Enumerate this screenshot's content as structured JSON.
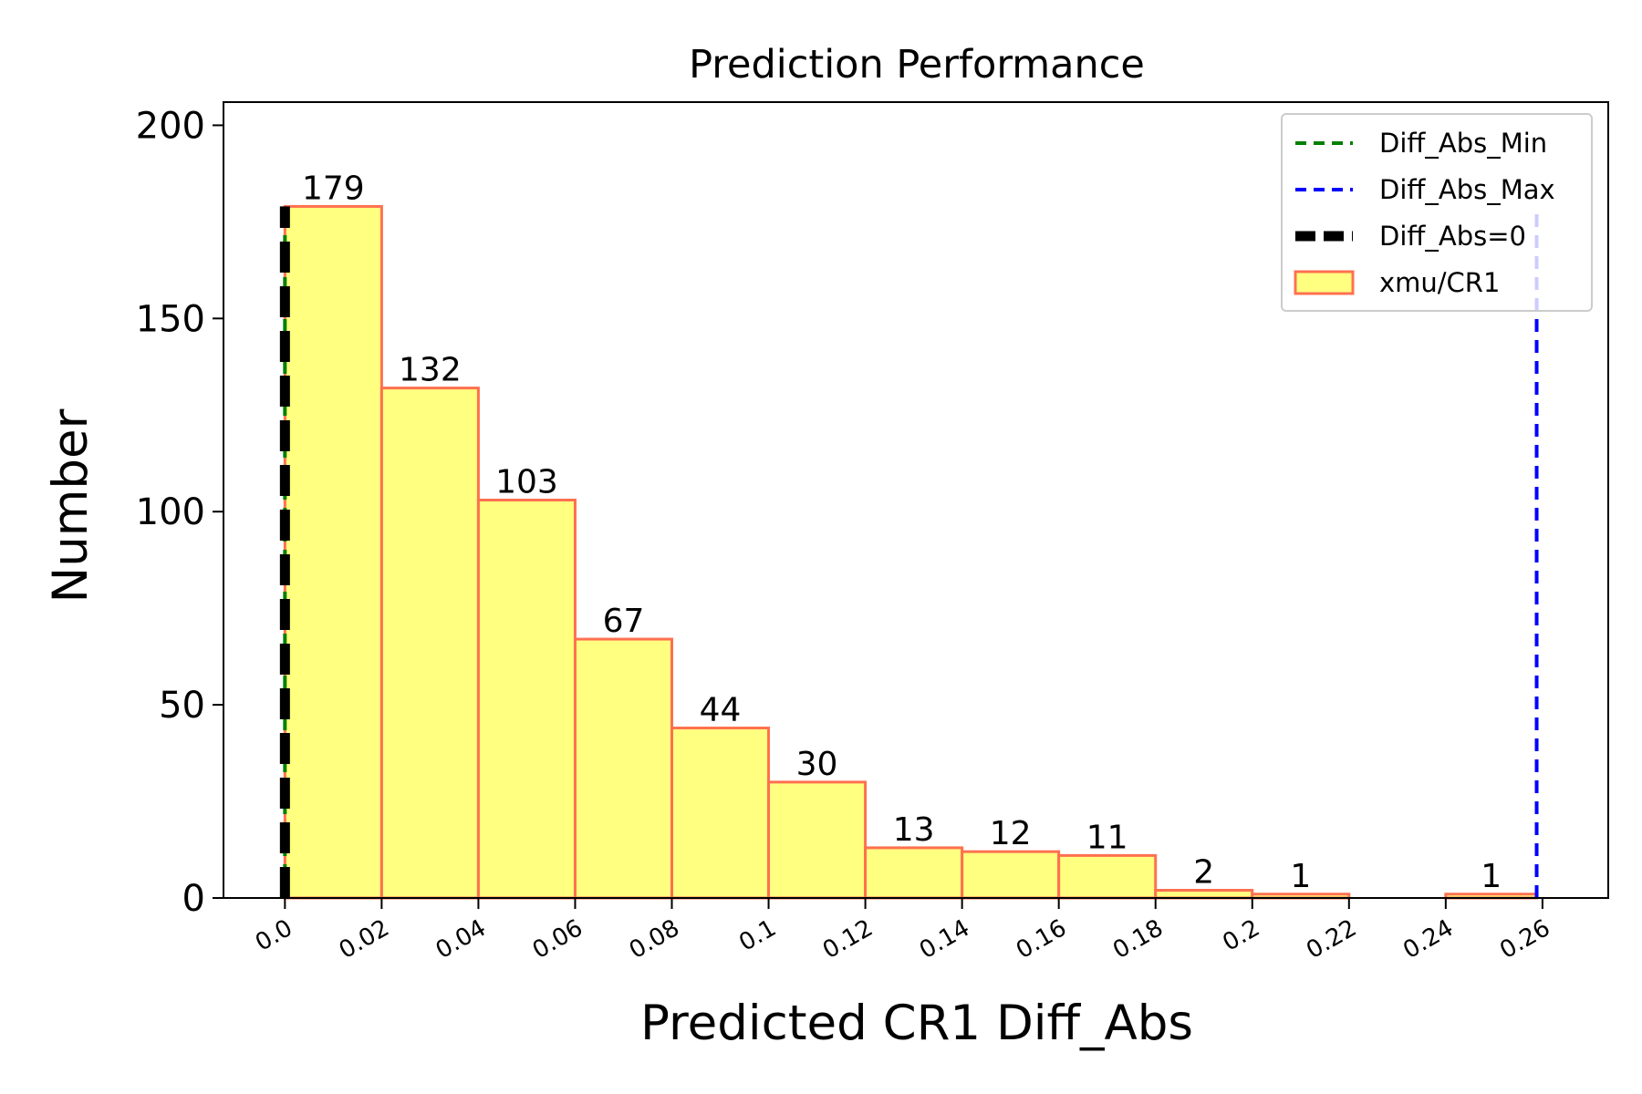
{
  "chart_data": {
    "type": "bar",
    "title": "Prediction Performance",
    "xlabel": "Predicted CR1 Diff_Abs",
    "ylabel": "Number",
    "ylim": [
      0,
      206
    ],
    "xlim": [
      -0.0127,
      0.2736
    ],
    "yticks": [
      0,
      50,
      100,
      150,
      200
    ],
    "xticks": [
      0.0,
      0.02,
      0.04,
      0.06,
      0.08,
      0.1,
      0.12,
      0.14,
      0.16,
      0.18,
      0.2,
      0.22,
      0.24,
      0.26
    ],
    "xtick_labels": [
      "0.0",
      "0.02",
      "0.04",
      "0.06",
      "0.08",
      "0.1",
      "0.12",
      "0.14",
      "0.16",
      "0.18",
      "0.2",
      "0.22",
      "0.24",
      "0.26"
    ],
    "bin_edges": [
      0.0,
      0.02,
      0.04,
      0.06,
      0.08,
      0.1,
      0.12,
      0.14,
      0.16,
      0.18,
      0.2,
      0.22,
      0.24,
      0.2588
    ],
    "values": [
      179,
      132,
      103,
      67,
      44,
      30,
      13,
      12,
      11,
      2,
      1,
      0,
      1
    ],
    "value_labels": [
      "179",
      "132",
      "103",
      "67",
      "44",
      "30",
      "13",
      "12",
      "11",
      "2",
      "1",
      "",
      "1"
    ],
    "bar_color": "#ffff80",
    "bar_edge_color": "#ff7050",
    "series": [
      {
        "name": "xmu/CR1",
        "kind": "bar",
        "color": "#ffff80",
        "edge": "#ff7050"
      }
    ],
    "vlines": [
      {
        "name": "Diff_Abs_Min",
        "x": 0.0,
        "color": "#008000",
        "style": "dashed",
        "top": 179
      },
      {
        "name": "Diff_Abs_Max",
        "x": 0.2588,
        "color": "#0000ff",
        "style": "dashed",
        "top": 179
      },
      {
        "name": "Diff_Abs=0",
        "x": 0.0,
        "color": "#000000",
        "style": "thick-dashed",
        "top": 179
      }
    ],
    "legend": {
      "position": "upper right",
      "entries": [
        "Diff_Abs_Min",
        "Diff_Abs_Max",
        "Diff_Abs=0",
        "xmu/CR1"
      ]
    },
    "grid": false
  }
}
